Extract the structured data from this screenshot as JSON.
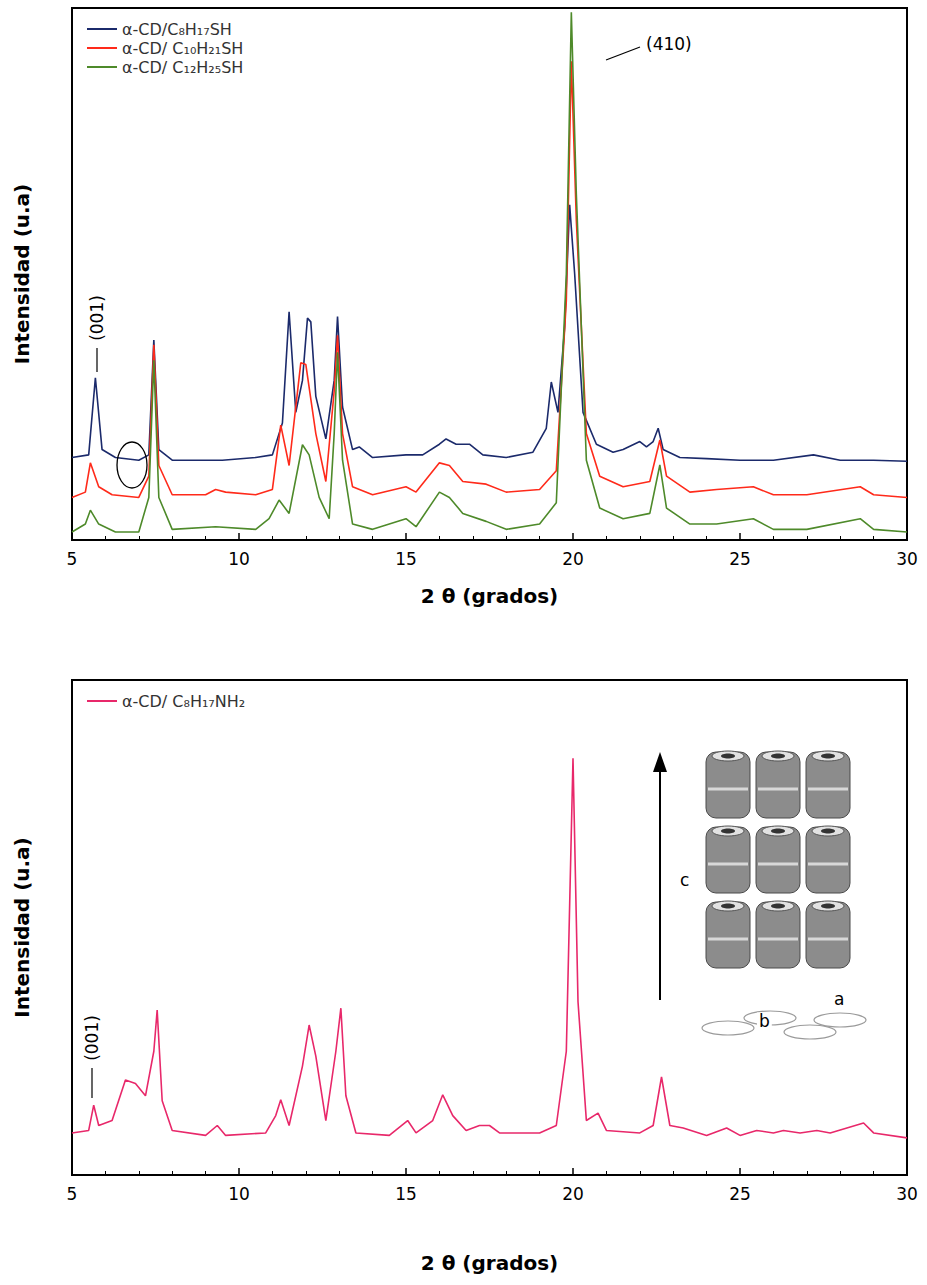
{
  "chart_data": [
    {
      "type": "line",
      "xlabel": "2 θ (grados)",
      "ylabel": "Intensidad (u.a)",
      "xlim": [
        5,
        30
      ],
      "xticks": [
        5,
        10,
        15,
        20,
        25,
        30
      ],
      "ylim": [
        0,
        100
      ],
      "tick_labels": "x",
      "legend": "upper left",
      "annotations": [
        "(001)",
        "(410)"
      ],
      "series": [
        {
          "name": "α-CD/C₈H₁₇SH",
          "color": "#1b2a6b",
          "x": [
            5.0,
            5.5,
            5.7,
            5.9,
            6.3,
            7.0,
            7.3,
            7.45,
            7.6,
            8.0,
            9.5,
            10.5,
            11.0,
            11.3,
            11.5,
            11.7,
            11.9,
            12.05,
            12.15,
            12.3,
            12.6,
            12.85,
            12.95,
            13.1,
            13.4,
            13.6,
            14.0,
            15.0,
            15.5,
            16.0,
            16.2,
            16.5,
            16.9,
            17.3,
            18.0,
            18.8,
            19.2,
            19.35,
            19.55,
            19.75,
            19.9,
            20.05,
            20.3,
            20.7,
            21.2,
            21.5,
            22.0,
            22.2,
            22.4,
            22.55,
            22.7,
            23.2,
            24.0,
            25.0,
            26.0,
            27.2,
            28.0,
            29.0,
            30.0
          ],
          "values": [
            15.5,
            16,
            30.5,
            17,
            15.5,
            15,
            16,
            37.6,
            17,
            15,
            15,
            15.5,
            16,
            22,
            42.9,
            24,
            30,
            41.7,
            41,
            27,
            19,
            30,
            42,
            25,
            17,
            17.5,
            15.5,
            16,
            16,
            18,
            19,
            18,
            18,
            16,
            15.5,
            16.5,
            21,
            29.7,
            24,
            40,
            63,
            50,
            24,
            18,
            16.5,
            17,
            18.5,
            17.5,
            18.5,
            21,
            17,
            15.5,
            15.3,
            15,
            15,
            16,
            15,
            15,
            14.8
          ]
        },
        {
          "name": "α-CD/ C₁₀H₂₁SH",
          "color": "#ff2a1a",
          "x": [
            5.0,
            5.4,
            5.55,
            5.8,
            6.2,
            7.0,
            7.3,
            7.45,
            7.6,
            8.0,
            9.0,
            9.3,
            9.6,
            10.5,
            11.0,
            11.25,
            11.5,
            11.85,
            12.0,
            12.3,
            12.6,
            12.85,
            12.95,
            13.1,
            13.4,
            14.0,
            15.0,
            15.3,
            16.0,
            16.3,
            16.7,
            17.4,
            18.0,
            19.0,
            19.5,
            19.8,
            19.95,
            20.1,
            20.4,
            20.8,
            21.5,
            22.3,
            22.6,
            22.8,
            23.5,
            24.3,
            25.4,
            26.0,
            27.0,
            28.6,
            29.0,
            30.0
          ],
          "values": [
            8,
            9,
            14.5,
            10,
            8.5,
            8,
            12,
            36.7,
            14,
            8.5,
            8.5,
            9.5,
            9,
            8.5,
            9.5,
            21.6,
            14,
            33.3,
            33,
            20,
            11,
            28,
            38.5,
            20,
            10,
            8.5,
            10,
            9,
            14.5,
            14,
            11,
            10.5,
            9,
            9.5,
            13,
            45,
            90,
            60,
            20,
            12,
            10,
            11,
            18.8,
            12,
            9,
            9.5,
            10,
            8.5,
            8.5,
            10,
            8.5,
            8
          ]
        },
        {
          "name": "α-CD/ C₁₂H₂₅SH",
          "color": "#4e8a2a",
          "x": [
            5.0,
            5.4,
            5.55,
            5.8,
            6.3,
            7.0,
            7.3,
            7.45,
            7.6,
            8.0,
            9.3,
            10.5,
            10.9,
            11.2,
            11.5,
            11.9,
            12.1,
            12.4,
            12.7,
            12.85,
            12.95,
            13.1,
            13.4,
            14.0,
            15.0,
            15.3,
            16.0,
            16.3,
            16.7,
            17.4,
            18.0,
            19.0,
            19.5,
            19.8,
            19.95,
            20.1,
            20.4,
            20.8,
            21.5,
            22.3,
            22.6,
            22.8,
            23.5,
            24.3,
            25.4,
            26.0,
            27.0,
            28.6,
            29.0,
            30.0
          ],
          "values": [
            1.5,
            3,
            5.6,
            3,
            1.5,
            1.5,
            8,
            33.8,
            8,
            2,
            2.5,
            2,
            4,
            7.5,
            5,
            17.9,
            16,
            8,
            4,
            20,
            35.3,
            15,
            3,
            2,
            4,
            2.5,
            9,
            8,
            5,
            3.5,
            2,
            3,
            7,
            50,
            99.2,
            65,
            15,
            6,
            4,
            5,
            14.1,
            6,
            3,
            3,
            4,
            2,
            2,
            4,
            2,
            1.5
          ]
        }
      ]
    },
    {
      "type": "line",
      "xlabel": "2 θ (grados)",
      "ylabel": "Intensidad (u.a)",
      "xlim": [
        5,
        30
      ],
      "xticks": [
        5,
        10,
        15,
        20,
        25,
        30
      ],
      "ylim": [
        0,
        100
      ],
      "tick_labels": "x",
      "legend": "upper left",
      "annotations": [
        "(001)",
        "c",
        "a",
        "b"
      ],
      "series": [
        {
          "name": "α-CD/ C₈H₁₇NH₂",
          "color": "#e8286a",
          "x": [
            5.0,
            5.5,
            5.65,
            5.8,
            6.2,
            6.6,
            6.9,
            7.2,
            7.45,
            7.55,
            7.7,
            8.0,
            9.0,
            9.35,
            9.6,
            10.8,
            11.1,
            11.25,
            11.5,
            11.9,
            12.1,
            12.3,
            12.6,
            12.9,
            13.05,
            13.2,
            13.5,
            14.5,
            15.05,
            15.3,
            15.8,
            16.1,
            16.4,
            16.8,
            17.2,
            17.5,
            17.8,
            19.0,
            19.5,
            19.8,
            20.0,
            20.15,
            20.4,
            20.75,
            21.0,
            22.0,
            22.4,
            22.65,
            22.9,
            23.3,
            24.0,
            24.6,
            25.0,
            25.5,
            26.0,
            26.3,
            26.8,
            27.3,
            27.7,
            28.7,
            29.0,
            30.0
          ],
          "values": [
            8.5,
            9,
            14.1,
            10,
            11,
            19.2,
            18.5,
            16,
            25,
            33.3,
            15,
            9,
            8,
            10,
            8,
            8.5,
            12,
            15.2,
            10,
            22,
            30.3,
            24,
            11,
            25,
            33.7,
            16,
            8.5,
            8,
            11,
            8.5,
            11,
            16.2,
            12,
            9,
            10,
            10,
            8.5,
            8.5,
            10,
            25,
            84.2,
            35,
            11,
            12.5,
            9,
            8.5,
            10,
            19.8,
            10,
            9.5,
            8,
            9.5,
            8,
            9,
            8.5,
            9,
            8.5,
            9,
            8.5,
            10.5,
            8.5,
            7.5
          ]
        }
      ]
    }
  ]
}
